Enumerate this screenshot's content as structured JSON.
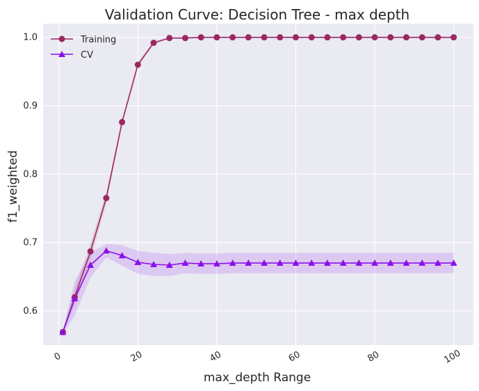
{
  "chart_data": {
    "type": "line",
    "title": "Validation Curve: Decision Tree - max depth",
    "xlabel": "max_depth Range",
    "ylabel": "f1_weighted",
    "xlim": [
      -4,
      105
    ],
    "ylim": [
      0.55,
      1.02
    ],
    "x_ticks": [
      0,
      20,
      40,
      60,
      80,
      100
    ],
    "y_ticks": [
      0.6,
      0.7,
      0.8,
      0.9,
      1.0
    ],
    "x_tick_labels": [
      "0",
      "20",
      "40",
      "60",
      "80",
      "100"
    ],
    "y_tick_labels": [
      "0.6",
      "0.7",
      "0.8",
      "0.9",
      "1.0"
    ],
    "grid": true,
    "legend_position": "top-left",
    "x": [
      1,
      4,
      8,
      12,
      16,
      20,
      24,
      28,
      32,
      36,
      40,
      44,
      48,
      52,
      56,
      60,
      64,
      68,
      72,
      76,
      80,
      84,
      88,
      92,
      96,
      100
    ],
    "series": [
      {
        "name": "Training",
        "color": "#9b2862",
        "marker": "circle",
        "values": [
          0.569,
          0.62,
          0.687,
          0.765,
          0.876,
          0.96,
          0.992,
          0.999,
          0.999,
          1.0,
          1.0,
          1.0,
          1.0,
          1.0,
          1.0,
          1.0,
          1.0,
          1.0,
          1.0,
          1.0,
          1.0,
          1.0,
          1.0,
          1.0,
          1.0,
          1.0
        ],
        "band": [
          0.002,
          0.012,
          0.012,
          0.008,
          0.004,
          0.003,
          0.002,
          0.001,
          0.001,
          0.0,
          0.0,
          0.0,
          0.0,
          0.0,
          0.0,
          0.0,
          0.0,
          0.0,
          0.0,
          0.0,
          0.0,
          0.0,
          0.0,
          0.0,
          0.0,
          0.0
        ]
      },
      {
        "name": "CV",
        "color": "#8c10e8",
        "marker": "triangle",
        "values": [
          0.569,
          0.618,
          0.667,
          0.688,
          0.681,
          0.671,
          0.668,
          0.667,
          0.67,
          0.669,
          0.669,
          0.67,
          0.67,
          0.67,
          0.67,
          0.67,
          0.67,
          0.67,
          0.67,
          0.67,
          0.67,
          0.67,
          0.67,
          0.67,
          0.67,
          0.67
        ],
        "band": [
          0.003,
          0.025,
          0.018,
          0.01,
          0.015,
          0.017,
          0.017,
          0.016,
          0.015,
          0.015,
          0.015,
          0.015,
          0.015,
          0.015,
          0.015,
          0.015,
          0.015,
          0.015,
          0.015,
          0.015,
          0.015,
          0.015,
          0.015,
          0.015,
          0.015,
          0.015
        ]
      }
    ]
  }
}
